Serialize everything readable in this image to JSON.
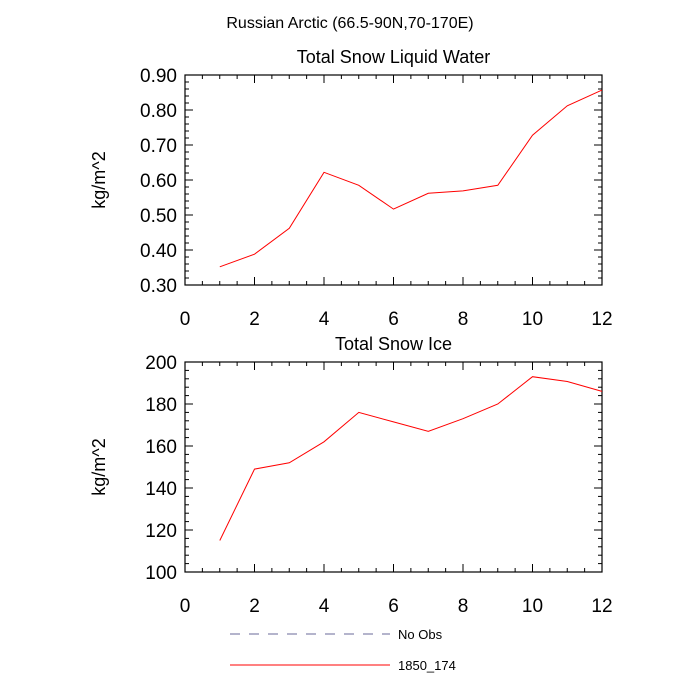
{
  "figure": {
    "suptitle": "Russian Arctic (66.5-90N,70-170E)"
  },
  "chart_data": [
    {
      "type": "line",
      "title": "Total Snow Liquid Water",
      "xlabel": "",
      "ylabel": "kg/m^2",
      "xlim": [
        0,
        12
      ],
      "ylim": [
        0.3,
        0.9
      ],
      "xticks": [
        0,
        2,
        4,
        6,
        8,
        10,
        12
      ],
      "xtick_labels": [
        "0",
        "2",
        "4",
        "6",
        "8",
        "10",
        "12"
      ],
      "yticks": [
        0.3,
        0.4,
        0.5,
        0.6,
        0.7,
        0.8,
        0.9
      ],
      "ytick_labels": [
        "0.30",
        "0.40",
        "0.50",
        "0.60",
        "0.70",
        "0.80",
        "0.90"
      ],
      "grid": false,
      "series": [
        {
          "name": "1850_174",
          "color": "#ff0000",
          "x": [
            1,
            2,
            3,
            4,
            5,
            6,
            7,
            8,
            9,
            10,
            11,
            12
          ],
          "y": [
            0.352,
            0.388,
            0.462,
            0.622,
            0.585,
            0.517,
            0.562,
            0.569,
            0.585,
            0.728,
            0.812,
            0.857
          ]
        }
      ]
    },
    {
      "type": "line",
      "title": "Total Snow Ice",
      "xlabel": "",
      "ylabel": "kg/m^2",
      "xlim": [
        0,
        12
      ],
      "ylim": [
        100,
        200
      ],
      "xticks": [
        0,
        2,
        4,
        6,
        8,
        10,
        12
      ],
      "xtick_labels": [
        "0",
        "2",
        "4",
        "6",
        "8",
        "10",
        "12"
      ],
      "yticks": [
        100,
        120,
        140,
        160,
        180,
        200
      ],
      "ytick_labels": [
        "100",
        "120",
        "140",
        "160",
        "180",
        "200"
      ],
      "grid": false,
      "series": [
        {
          "name": "1850_174",
          "color": "#ff0000",
          "x": [
            1,
            2,
            3,
            4,
            5,
            6,
            7,
            8,
            9,
            10,
            11,
            12
          ],
          "y": [
            115,
            149,
            152,
            162,
            176,
            171.5,
            167,
            173,
            180,
            193,
            190.7,
            186
          ]
        }
      ]
    }
  ],
  "legend": {
    "placement": "bottom",
    "items": [
      {
        "label": "No Obs",
        "color": "#6a6a9a",
        "style": "dashed"
      },
      {
        "label": "1850_174",
        "color": "#ff0000",
        "style": "solid"
      }
    ]
  }
}
